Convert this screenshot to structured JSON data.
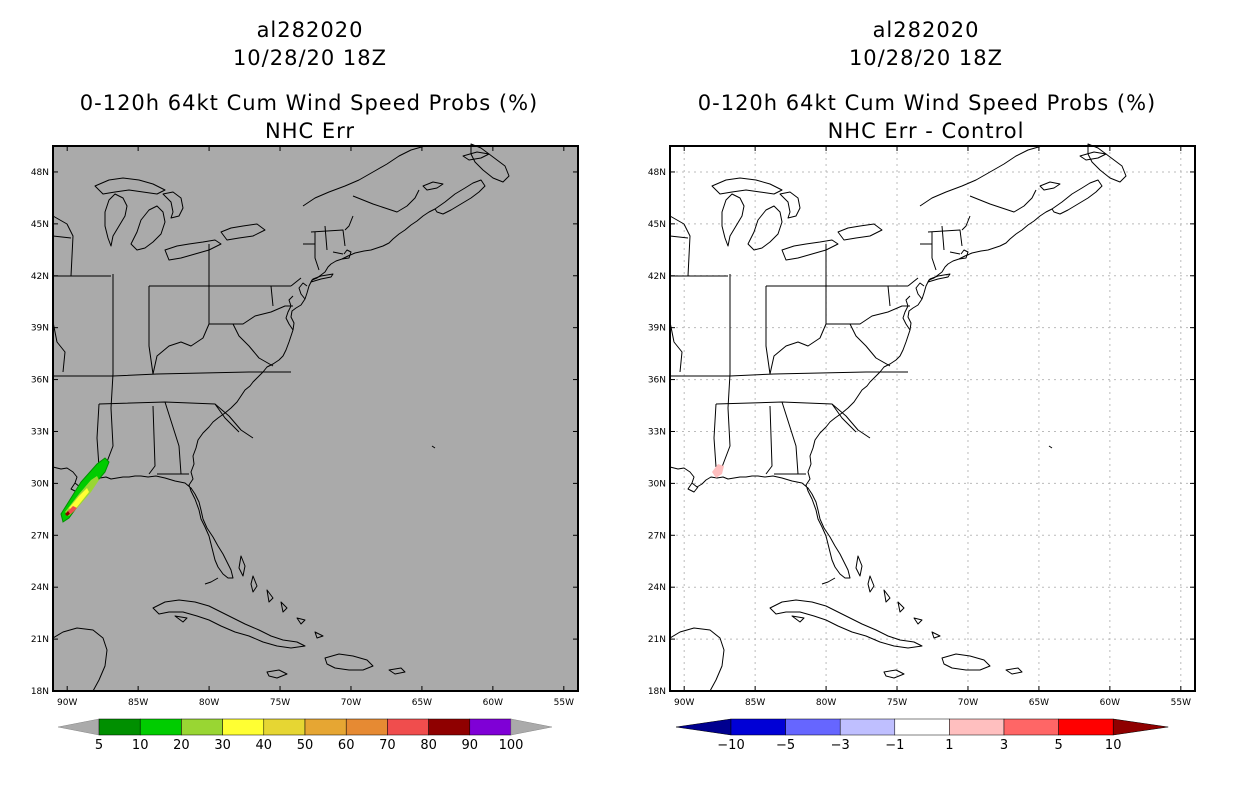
{
  "left_panel": {
    "title_line1": "al282020",
    "title_line2": "10/28/20 18Z",
    "title_line3": "0-120h 64kt Cum Wind Speed Probs (%)",
    "title_line4": "NHC Err",
    "background_color": "#aaaaaa",
    "colorbar": {
      "labels": [
        "5",
        "10",
        "20",
        "30",
        "40",
        "50",
        "60",
        "70",
        "80",
        "90",
        "100"
      ],
      "colors": [
        "#008f00",
        "#00cc00",
        "#99d633",
        "#ffff33",
        "#e6d633",
        "#e6a633",
        "#e68a33",
        "#f04d4d",
        "#8f0000",
        "#7f00d6"
      ],
      "end_color": "#aaaaaa"
    }
  },
  "right_panel": {
    "title_line1": "al282020",
    "title_line2": "10/28/20 18Z",
    "title_line3": "0-120h 64kt Cum Wind Speed Probs (%)",
    "title_line4": "NHC Err - Control",
    "background_color": "#ffffff",
    "colorbar": {
      "labels": [
        "-10",
        "-5",
        "-3",
        "-1",
        "1",
        "3",
        "5",
        "10"
      ],
      "colors": [
        "#0000d6",
        "#6666ff",
        "#bfbfff",
        "#ffffff",
        "#ffbfbf",
        "#ff6666",
        "#ff0000"
      ],
      "left_end_color": "#00008f",
      "right_end_color": "#8f0000"
    }
  },
  "map": {
    "lat_labels": [
      "48N",
      "45N",
      "42N",
      "39N",
      "36N",
      "33N",
      "30N",
      "27N",
      "24N",
      "21N",
      "18N"
    ],
    "lon_labels": [
      "90W",
      "85W",
      "80W",
      "75W",
      "70W",
      "65W",
      "60W",
      "55W"
    ],
    "lat_values": [
      48,
      45,
      42,
      39,
      36,
      33,
      30,
      27,
      24,
      21,
      18
    ],
    "lon_values": [
      -90,
      -85,
      -80,
      -75,
      -70,
      -65,
      -60,
      -55
    ],
    "extent": {
      "lon_min": -91,
      "lon_max": -54,
      "lat_min": 18,
      "lat_max": 49.5
    }
  }
}
